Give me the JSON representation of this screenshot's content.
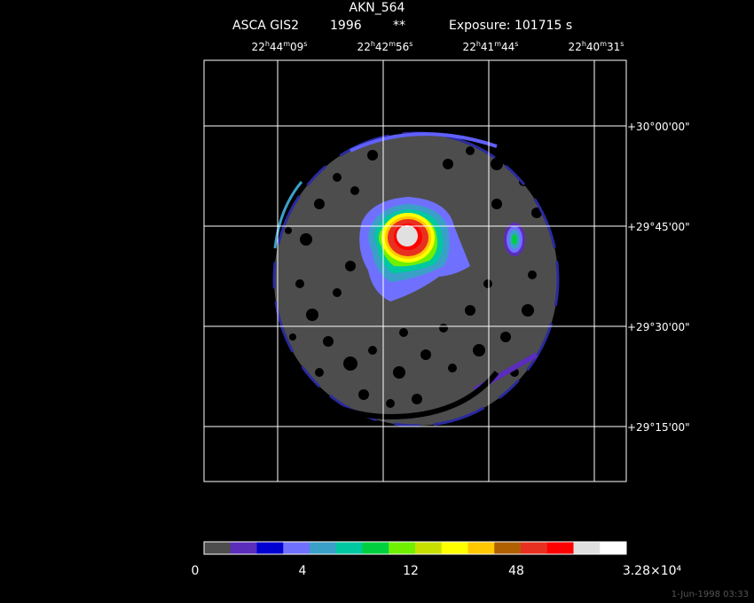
{
  "header": {
    "object": "AKN_564",
    "instrument": "ASCA GIS2",
    "year": "1996",
    "flag": "**",
    "exposure": "Exposure: 101715 s"
  },
  "ra_labels": [
    {
      "h": "22",
      "m": "44",
      "s": "09"
    },
    {
      "h": "22",
      "m": "42",
      "s": "56"
    },
    {
      "h": "22",
      "m": "41",
      "s": "44"
    },
    {
      "h": "22",
      "m": "40",
      "s": "31"
    }
  ],
  "dec_labels": [
    "+30°00'00\"",
    "+29°45'00\"",
    "+29°30'00\"",
    "+29°15'00\""
  ],
  "colorbar": {
    "colors": [
      "#4d4d4d",
      "#5a2dbb",
      "#0000d0",
      "#7070ff",
      "#3aa0c8",
      "#00c8a0",
      "#00d040",
      "#70f000",
      "#c8e000",
      "#ffff00",
      "#ffc800",
      "#b06000",
      "#e83020",
      "#ff0000",
      "#e0e0e0",
      "#ffffff"
    ],
    "labels": [
      "0",
      "4",
      "12",
      "48",
      "3.28×10⁴"
    ]
  },
  "footer": {
    "stamp": "1-Jun-1998 03:33"
  }
}
